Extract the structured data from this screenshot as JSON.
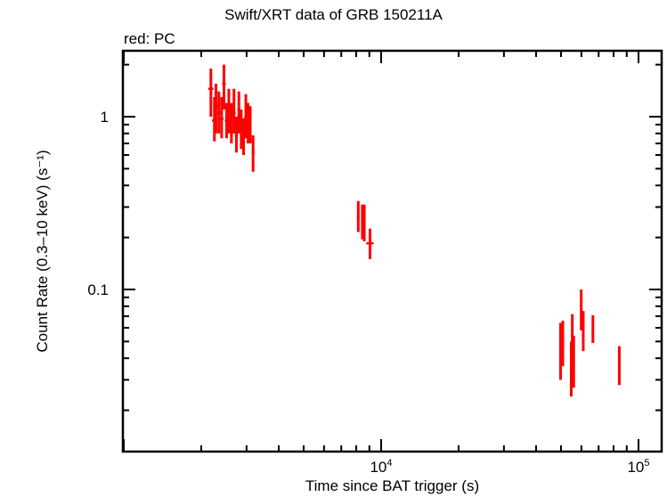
{
  "chart_data": {
    "type": "scatter",
    "title": "Swift/XRT data of GRB 150211A",
    "subtitle": "red: PC",
    "xlabel": "Time since BAT trigger (s)",
    "ylabel": "Count Rate (0.3–10 keV) (s⁻¹)",
    "xscale": "log",
    "yscale": "log",
    "xlim": [
      1000,
      120000
    ],
    "ylim": [
      0.018,
      2.4
    ],
    "x_ticks": [
      {
        "value": 10000,
        "label": "10⁴"
      },
      {
        "value": 100000,
        "label": "10⁵"
      }
    ],
    "y_ticks": [
      {
        "value": 1,
        "label": "1"
      },
      {
        "value": 0.1,
        "label": "0.1"
      }
    ],
    "grid": false,
    "legend": "none",
    "series": [
      {
        "name": "PC",
        "color": "#ff0000",
        "points": [
          {
            "t": 2180,
            "t_lo": 2130,
            "t_hi": 2230,
            "rate": 1.45,
            "lo": 1.0,
            "hi": 1.9
          },
          {
            "t": 2250,
            "t_lo": 2200,
            "t_hi": 2300,
            "rate": 0.95,
            "lo": 0.72,
            "hi": 1.3
          },
          {
            "t": 2280,
            "t_lo": 2230,
            "t_hi": 2330,
            "rate": 1.15,
            "lo": 0.8,
            "hi": 1.55
          },
          {
            "t": 2340,
            "t_lo": 2300,
            "t_hi": 2380,
            "rate": 1.05,
            "lo": 0.8,
            "hi": 1.4
          },
          {
            "t": 2400,
            "t_lo": 2360,
            "t_hi": 2440,
            "rate": 0.97,
            "lo": 0.75,
            "hi": 1.3
          },
          {
            "t": 2450,
            "t_lo": 2410,
            "t_hi": 2490,
            "rate": 1.55,
            "lo": 1.1,
            "hi": 2.0
          },
          {
            "t": 2510,
            "t_lo": 2470,
            "t_hi": 2550,
            "rate": 0.95,
            "lo": 0.75,
            "hi": 1.2
          },
          {
            "t": 2560,
            "t_lo": 2520,
            "t_hi": 2600,
            "rate": 1.1,
            "lo": 0.8,
            "hi": 1.45
          },
          {
            "t": 2620,
            "t_lo": 2580,
            "t_hi": 2660,
            "rate": 0.9,
            "lo": 0.7,
            "hi": 1.2
          },
          {
            "t": 2680,
            "t_lo": 2640,
            "t_hi": 2720,
            "rate": 1.05,
            "lo": 0.8,
            "hi": 1.45
          },
          {
            "t": 2740,
            "t_lo": 2700,
            "t_hi": 2780,
            "rate": 0.78,
            "lo": 0.62,
            "hi": 1.0
          },
          {
            "t": 2800,
            "t_lo": 2760,
            "t_hi": 2840,
            "rate": 1.1,
            "lo": 0.8,
            "hi": 1.4
          },
          {
            "t": 2860,
            "t_lo": 2820,
            "t_hi": 2900,
            "rate": 0.85,
            "lo": 0.65,
            "hi": 1.1
          },
          {
            "t": 2920,
            "t_lo": 2880,
            "t_hi": 2960,
            "rate": 0.75,
            "lo": 0.6,
            "hi": 0.98
          },
          {
            "t": 2980,
            "t_lo": 2940,
            "t_hi": 3020,
            "rate": 1.0,
            "lo": 0.75,
            "hi": 1.35
          },
          {
            "t": 3040,
            "t_lo": 3000,
            "t_hi": 3080,
            "rate": 0.9,
            "lo": 0.7,
            "hi": 1.2
          },
          {
            "t": 3100,
            "t_lo": 3060,
            "t_hi": 3140,
            "rate": 0.88,
            "lo": 0.7,
            "hi": 1.15
          },
          {
            "t": 3180,
            "t_lo": 3140,
            "t_hi": 3220,
            "rate": 0.62,
            "lo": 0.48,
            "hi": 0.78
          },
          {
            "t": 8150,
            "t_lo": 8050,
            "t_hi": 8250,
            "rate": 0.265,
            "lo": 0.215,
            "hi": 0.325
          },
          {
            "t": 8450,
            "t_lo": 8350,
            "t_hi": 8550,
            "rate": 0.25,
            "lo": 0.195,
            "hi": 0.31
          },
          {
            "t": 8600,
            "t_lo": 8500,
            "t_hi": 8700,
            "rate": 0.25,
            "lo": 0.19,
            "hi": 0.31
          },
          {
            "t": 9050,
            "t_lo": 8750,
            "t_hi": 9350,
            "rate": 0.185,
            "lo": 0.15,
            "hi": 0.225
          },
          {
            "t": 49800,
            "t_lo": 49500,
            "t_hi": 50100,
            "rate": 0.045,
            "lo": 0.03,
            "hi": 0.064
          },
          {
            "t": 50800,
            "t_lo": 50500,
            "t_hi": 51100,
            "rate": 0.048,
            "lo": 0.036,
            "hi": 0.066
          },
          {
            "t": 54800,
            "t_lo": 54300,
            "t_hi": 55300,
            "rate": 0.036,
            "lo": 0.024,
            "hi": 0.05
          },
          {
            "t": 55300,
            "t_lo": 54900,
            "t_hi": 55700,
            "rate": 0.055,
            "lo": 0.039,
            "hi": 0.072
          },
          {
            "t": 56000,
            "t_lo": 55600,
            "t_hi": 56400,
            "rate": 0.04,
            "lo": 0.027,
            "hi": 0.054
          },
          {
            "t": 59900,
            "t_lo": 59500,
            "t_hi": 60300,
            "rate": 0.077,
            "lo": 0.058,
            "hi": 0.1
          },
          {
            "t": 61000,
            "t_lo": 60600,
            "t_hi": 61400,
            "rate": 0.06,
            "lo": 0.044,
            "hi": 0.075
          },
          {
            "t": 66500,
            "t_lo": 66100,
            "t_hi": 66900,
            "rate": 0.06,
            "lo": 0.049,
            "hi": 0.071
          },
          {
            "t": 84200,
            "t_lo": 83800,
            "t_hi": 84600,
            "rate": 0.037,
            "lo": 0.028,
            "hi": 0.047
          }
        ]
      }
    ]
  }
}
